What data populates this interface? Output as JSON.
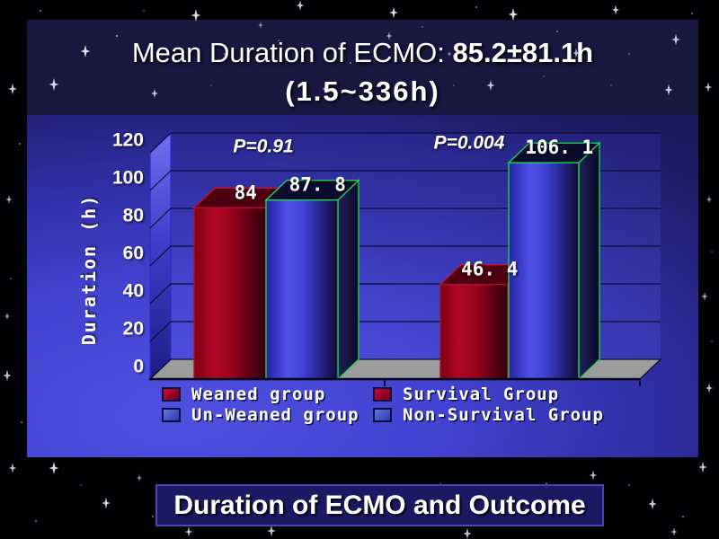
{
  "slide": {
    "title_line1_regular": "Mean Duration of ECMO: ",
    "title_line1_bold": "85.2±81.1h",
    "title_line2": "(1.5~336h)",
    "caption": "Duration of ECMO and Outcome"
  },
  "chart_data": {
    "type": "bar",
    "title": "",
    "xlabel": "",
    "ylabel": "Duration (h)",
    "ylim": [
      0,
      120
    ],
    "yticks": [
      0,
      20,
      40,
      60,
      80,
      100,
      120
    ],
    "grid": true,
    "legend_position": "bottom",
    "style": "3d-column",
    "categories": [
      "Weaned group",
      "Un-Weaned group",
      "Survival Group",
      "Non-Survival Group"
    ],
    "values": [
      84,
      87.8,
      46.4,
      106.1
    ],
    "bar_labels": [
      "84",
      "87. 8",
      "46. 4",
      "106. 1"
    ],
    "bar_colors": [
      "red",
      "blue",
      "red",
      "blue"
    ],
    "annotations": [
      {
        "text": "P=0.91",
        "group": "weaned-vs-unweaned"
      },
      {
        "text": "P=0.004",
        "group": "survival-vs-nonsurvival"
      }
    ]
  },
  "legend": {
    "items": [
      {
        "label": "Weaned group",
        "color": "red"
      },
      {
        "label": "Survival Group",
        "color": "red"
      },
      {
        "label": "Un-Weaned group",
        "color": "blue"
      },
      {
        "label": "Non-Survival Group",
        "color": "blue"
      }
    ]
  },
  "colors": {
    "red_bar": "#a30520",
    "blue_bar": "#4343da",
    "blue_bar_outline": "#1fd152",
    "red_bar_outline": "#c81030",
    "panel_blue": "#4343d2",
    "floor_gray": "#9c9c9c",
    "title_band_bg": "#17173f",
    "caption_bg": "#1a1a63",
    "caption_border": "#4747b2",
    "text": "#ffffff"
  }
}
